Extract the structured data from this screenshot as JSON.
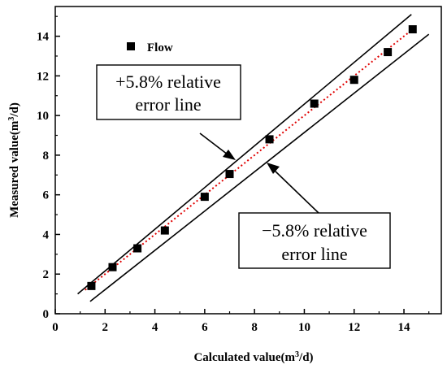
{
  "chart_data": {
    "type": "scatter",
    "xlabel_main": "Calculated value(m",
    "xlabel_sup": "3",
    "xlabel_tail": "/d)",
    "ylabel_main": "Measured value(m",
    "ylabel_sup": "3",
    "ylabel_tail": "/d)",
    "xlim": [
      0,
      15.5
    ],
    "ylim": [
      0,
      15.5
    ],
    "xticks": [
      0,
      2,
      4,
      6,
      8,
      10,
      12,
      14
    ],
    "yticks": [
      0,
      2,
      4,
      6,
      8,
      10,
      12,
      14
    ],
    "grid": false,
    "legend_position": "top-left",
    "series": [
      {
        "name": "Flow",
        "x": [
          1.45,
          2.3,
          3.3,
          4.4,
          6.0,
          7.0,
          8.6,
          10.4,
          12.0,
          13.35,
          14.35
        ],
        "y": [
          1.4,
          2.35,
          3.3,
          4.2,
          5.9,
          7.05,
          8.8,
          10.6,
          11.8,
          13.2,
          14.35
        ]
      }
    ],
    "fit_line": {
      "x": [
        1.2,
        14.4
      ],
      "y": [
        1.2,
        14.4
      ],
      "color": "#e00000",
      "style": "dotted"
    },
    "upper_line": {
      "x": [
        0.9,
        14.3
      ],
      "y": [
        1.0,
        15.1
      ]
    },
    "lower_line": {
      "x": [
        1.4,
        15.0
      ],
      "y": [
        0.62,
        14.1
      ]
    },
    "annotations": [
      {
        "line1": "+5.8% relative",
        "line2": "error line"
      },
      {
        "line1": "−5.8% relative",
        "line2": "error line"
      }
    ]
  }
}
